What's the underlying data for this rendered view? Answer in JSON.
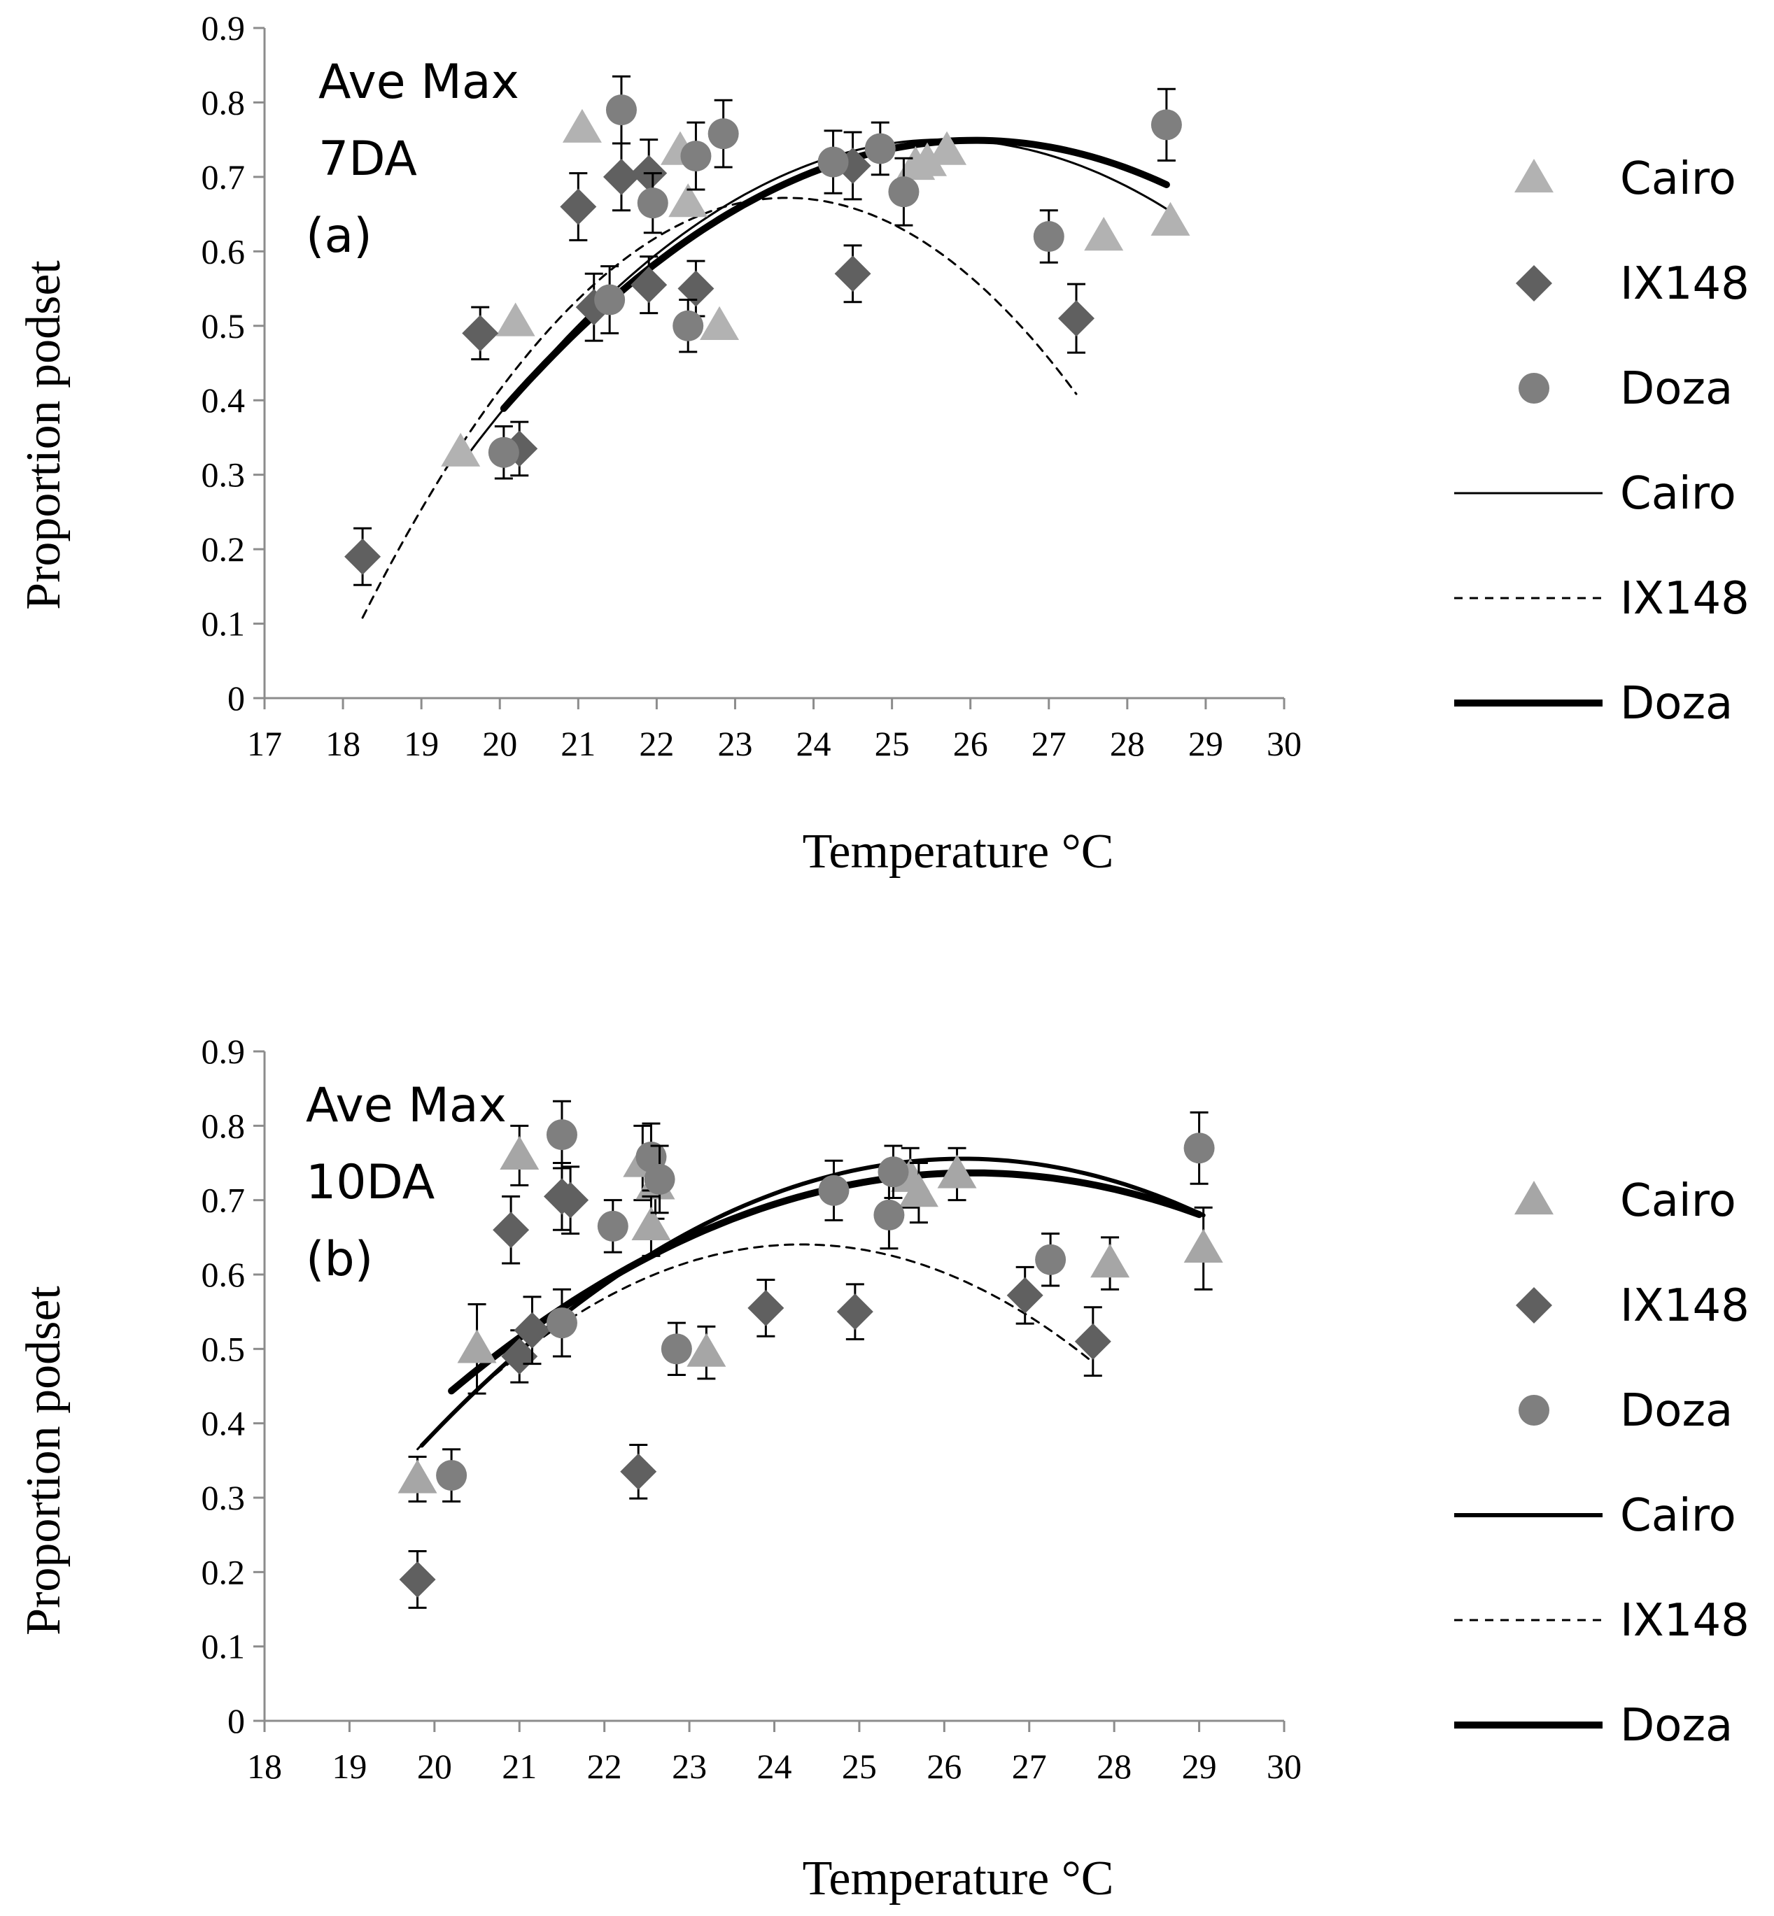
{
  "chart_data": [
    {
      "panel": "a",
      "type": "scatter",
      "xlabel": "Temperature °C",
      "ylabel": "Proportion podset",
      "annotations": [
        "Ave Max",
        "7DA",
        "(a)"
      ],
      "xlim": [
        17,
        30
      ],
      "ylim": [
        0,
        0.9
      ],
      "xticks": [
        17,
        18,
        19,
        20,
        21,
        22,
        23,
        24,
        25,
        26,
        27,
        28,
        29,
        30
      ],
      "yticks": [
        0,
        0.1,
        0.2,
        0.3,
        0.4,
        0.5,
        0.6,
        0.7,
        0.8,
        0.9
      ],
      "points": [
        {
          "name": "Cairo",
          "marker": "triangle",
          "color": "#b2b2b2",
          "x": [
            19.5,
            20.2,
            21.05,
            22.3,
            22.4,
            22.8,
            25.3,
            25.45,
            25.7,
            27.7,
            28.55
          ],
          "y": [
            0.33,
            0.505,
            0.765,
            0.735,
            0.665,
            0.5,
            0.715,
            0.72,
            0.735,
            0.62,
            0.64
          ],
          "err": []
        },
        {
          "name": "IX148",
          "marker": "diamond",
          "color": "#606060",
          "x": [
            18.25,
            19.75,
            20.25,
            21.0,
            21.2,
            21.55,
            21.9,
            21.9,
            22.5,
            24.5,
            24.5,
            27.35
          ],
          "y": [
            0.19,
            0.49,
            0.335,
            0.66,
            0.525,
            0.7,
            0.555,
            0.705,
            0.55,
            0.57,
            0.715,
            0.51
          ],
          "err": [
            0.038,
            0.035,
            0.036,
            0.045,
            0.045,
            0.045,
            0.038,
            0.045,
            0.037,
            0.038,
            0.045,
            0.046
          ]
        },
        {
          "name": "Doza",
          "marker": "circle",
          "color": "#7f7f7f",
          "x": [
            20.05,
            21.4,
            21.55,
            21.95,
            22.4,
            22.5,
            22.85,
            24.25,
            24.85,
            25.15,
            27.0,
            28.5
          ],
          "y": [
            0.33,
            0.535,
            0.79,
            0.665,
            0.5,
            0.728,
            0.758,
            0.72,
            0.738,
            0.68,
            0.62,
            0.77
          ],
          "err": [
            0.035,
            0.045,
            0.045,
            0.04,
            0.035,
            0.045,
            0.045,
            0.042,
            0.035,
            0.045,
            0.035,
            0.048
          ]
        }
      ],
      "fits": [
        {
          "name": "Cairo",
          "style": "thin",
          "a": -0.01151,
          "b": 0.5906,
          "c": -6.826,
          "x_range": [
            19.5,
            28.55
          ]
        },
        {
          "name": "IX148",
          "style": "dashed",
          "a": -0.0193,
          "b": 0.9131,
          "c": -10.128,
          "x_range": [
            18.25,
            27.35
          ]
        },
        {
          "name": "Doza",
          "style": "thick",
          "a": -0.00998,
          "b": 0.5201,
          "c": -6.027,
          "x_range": [
            20.05,
            28.5
          ]
        }
      ],
      "legend": [
        "Cairo",
        "IX148",
        "Doza",
        "Cairo",
        "IX148",
        "Doza"
      ]
    },
    {
      "panel": "b",
      "type": "scatter",
      "xlabel": "Temperature °C",
      "ylabel": "Proportion podset",
      "annotations": [
        "Ave Max",
        "10DA",
        "(b)"
      ],
      "xlim": [
        18,
        30
      ],
      "ylim": [
        0,
        0.9
      ],
      "xticks": [
        18,
        19,
        20,
        21,
        22,
        23,
        24,
        25,
        26,
        27,
        28,
        29,
        30
      ],
      "yticks": [
        0,
        0.1,
        0.2,
        0.3,
        0.4,
        0.5,
        0.6,
        0.7,
        0.8,
        0.9
      ],
      "points": [
        {
          "name": "Cairo",
          "marker": "triangle",
          "color": "#a6a6a6",
          "x": [
            19.8,
            20.5,
            21.0,
            22.45,
            22.6,
            22.55,
            23.2,
            25.6,
            25.7,
            26.15,
            27.95,
            29.05
          ],
          "y": [
            0.325,
            0.5,
            0.76,
            0.75,
            0.72,
            0.665,
            0.495,
            0.73,
            0.71,
            0.735,
            0.615,
            0.635
          ],
          "err": [
            0.03,
            0.06,
            0.04,
            0.05,
            0.045,
            0.04,
            0.035,
            0.04,
            0.04,
            0.035,
            0.035,
            0.055
          ]
        },
        {
          "name": "IX148",
          "marker": "diamond",
          "color": "#606060",
          "x": [
            19.8,
            20.9,
            21.0,
            21.15,
            21.5,
            21.6,
            22.4,
            23.9,
            24.95,
            26.95,
            27.75
          ],
          "y": [
            0.19,
            0.66,
            0.49,
            0.525,
            0.705,
            0.7,
            0.335,
            0.555,
            0.55,
            0.572,
            0.51
          ],
          "err": [
            0.038,
            0.045,
            0.035,
            0.045,
            0.045,
            0.045,
            0.036,
            0.038,
            0.037,
            0.038,
            0.046
          ]
        },
        {
          "name": "Doza",
          "marker": "circle",
          "color": "#7f7f7f",
          "x": [
            20.2,
            21.5,
            21.5,
            22.1,
            22.85,
            22.55,
            22.65,
            24.7,
            25.35,
            25.4,
            27.25,
            29.0
          ],
          "y": [
            0.33,
            0.535,
            0.788,
            0.665,
            0.5,
            0.758,
            0.728,
            0.713,
            0.68,
            0.738,
            0.62,
            0.77
          ],
          "err": [
            0.035,
            0.045,
            0.045,
            0.035,
            0.035,
            0.045,
            0.045,
            0.04,
            0.045,
            0.035,
            0.035,
            0.048
          ]
        }
      ],
      "fits": [
        {
          "name": "Cairo",
          "style": "medium",
          "a": -0.0095,
          "b": 0.4982,
          "c": -5.776,
          "x_range": [
            19.85,
            29.05
          ]
        },
        {
          "name": "IX148",
          "style": "dashed",
          "a": -0.01347,
          "b": 0.6552,
          "c": -7.327,
          "x_range": [
            19.8,
            27.75
          ]
        },
        {
          "name": "Doza",
          "style": "thick",
          "a": -0.00782,
          "b": 0.4117,
          "c": -4.682,
          "x_range": [
            20.2,
            29.0
          ]
        }
      ],
      "legend": [
        "Cairo",
        "IX148",
        "Doza",
        "Cairo",
        "IX148",
        "Doza"
      ]
    }
  ]
}
